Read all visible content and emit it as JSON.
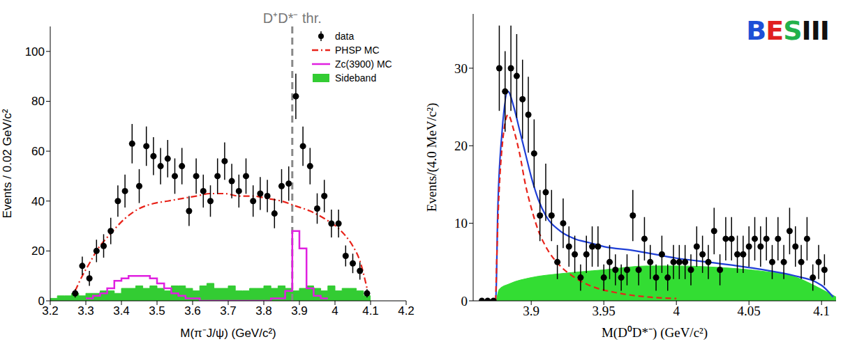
{
  "chart_data": [
    {
      "type": "histogram",
      "xlabel": "M(π⁻J/ψ) (GeV/c²)",
      "ylabel": "Events / 0.02 GeV/c²",
      "xlim": [
        3.2,
        4.2
      ],
      "xticks": [
        3.2,
        3.3,
        3.4,
        3.5,
        3.6,
        3.7,
        3.8,
        3.9,
        4,
        4.1,
        4.2
      ],
      "ylim": [
        0,
        110
      ],
      "yticks": [
        0,
        20,
        40,
        60,
        80,
        100
      ],
      "legend": "upper right",
      "annotation": {
        "text": "D⁺D*⁻ thr.",
        "x": 3.88
      },
      "series": [
        {
          "name": "Sideband",
          "type": "bar",
          "color": "#33cc33",
          "bins": [
            3.2,
            3.22,
            3.24,
            3.26,
            3.28,
            3.3,
            3.32,
            3.34,
            3.36,
            3.38,
            3.4,
            3.42,
            3.44,
            3.46,
            3.48,
            3.5,
            3.52,
            3.54,
            3.56,
            3.58,
            3.6,
            3.62,
            3.64,
            3.66,
            3.68,
            3.7,
            3.72,
            3.74,
            3.76,
            3.78,
            3.8,
            3.82,
            3.84,
            3.86,
            3.88,
            3.9,
            3.92,
            3.94,
            3.96,
            3.98,
            4,
            4.02,
            4.04,
            4.06,
            4.08,
            4.1
          ],
          "counts": [
            1,
            2,
            2,
            3,
            2,
            3,
            3,
            4,
            4,
            3,
            5,
            5,
            6,
            5,
            6,
            5,
            4,
            6,
            6,
            5,
            4,
            6,
            7,
            5,
            5,
            6,
            4,
            4,
            5,
            5,
            6,
            5,
            6,
            5,
            4,
            5,
            6,
            5,
            4,
            6,
            4,
            5,
            5,
            4,
            2
          ]
        },
        {
          "name": "PHSP MC",
          "type": "line",
          "color": "#e8231a",
          "line_style": "dashdot",
          "x": [
            3.27,
            3.29,
            3.31,
            3.33,
            3.37,
            3.41,
            3.45,
            3.49,
            3.53,
            3.57,
            3.61,
            3.65,
            3.69,
            3.73,
            3.77,
            3.81,
            3.85,
            3.89,
            3.93,
            3.97,
            4.01,
            4.03,
            4.05,
            4.07,
            4.09
          ],
          "values": [
            4,
            10,
            15,
            20,
            27,
            33,
            37,
            39,
            40,
            41,
            42,
            43,
            43,
            42,
            42,
            41,
            40,
            38,
            36,
            33,
            29,
            26,
            22,
            16,
            5
          ]
        },
        {
          "name": "Zc(3900) MC",
          "type": "step",
          "color": "#e020e0",
          "line_style": "solid",
          "bins": [
            3.3,
            3.32,
            3.34,
            3.36,
            3.38,
            3.4,
            3.42,
            3.44,
            3.46,
            3.48,
            3.5,
            3.52,
            3.54,
            3.56,
            3.58,
            3.6,
            3.62,
            3.64,
            3.66,
            3.68,
            3.7,
            3.72,
            3.74,
            3.76,
            3.78,
            3.8,
            3.82,
            3.84,
            3.86,
            3.88,
            3.9,
            3.92,
            3.94,
            3.96,
            3.98
          ],
          "counts": [
            1,
            2,
            3,
            5,
            8,
            9,
            10,
            10,
            10,
            9,
            7,
            5,
            3,
            2,
            1,
            1,
            0,
            0,
            0,
            0,
            0,
            0,
            0,
            0,
            0,
            0,
            1,
            1,
            4,
            28,
            21,
            5,
            2,
            1
          ]
        },
        {
          "name": "data",
          "type": "scatter",
          "color": "#000000",
          "marker": "circle",
          "x": [
            3.27,
            3.29,
            3.31,
            3.33,
            3.35,
            3.37,
            3.39,
            3.41,
            3.43,
            3.45,
            3.47,
            3.49,
            3.51,
            3.53,
            3.55,
            3.57,
            3.59,
            3.61,
            3.63,
            3.65,
            3.67,
            3.69,
            3.71,
            3.73,
            3.75,
            3.77,
            3.79,
            3.81,
            3.83,
            3.85,
            3.87,
            3.89,
            3.91,
            3.93,
            3.95,
            3.97,
            3.99,
            4.01,
            4.03,
            4.05,
            4.07,
            4.09
          ],
          "values": [
            3,
            14,
            9,
            20,
            22,
            28,
            40,
            44,
            63,
            46,
            62,
            58,
            54,
            57,
            50,
            54,
            36,
            50,
            44,
            40,
            50,
            56,
            48,
            44,
            50,
            40,
            43,
            42,
            35,
            46,
            47,
            82,
            62,
            54,
            37,
            42,
            31,
            31,
            18,
            15,
            12,
            3
          ],
          "errors": [
            1.7,
            3.7,
            3,
            4.5,
            4.7,
            5.3,
            6.3,
            6.6,
            7.9,
            6.8,
            7.9,
            7.6,
            7.3,
            7.5,
            7.1,
            7.3,
            6,
            7.1,
            6.6,
            6.3,
            7.1,
            7.5,
            6.9,
            6.6,
            7.1,
            6.3,
            6.6,
            6.5,
            5.9,
            6.8,
            6.9,
            9.1,
            7.9,
            7.3,
            6.1,
            6.5,
            5.6,
            5.6,
            4.2,
            3.9,
            3.5,
            1.7
          ]
        }
      ]
    },
    {
      "type": "line",
      "xlabel": "M(D⁰D*⁻) (GeV/c²)",
      "ylabel": "Events/(4.0 MeV/c²)",
      "logo": "BESIII",
      "xlim": [
        3.86,
        4.11
      ],
      "xticks": [
        3.9,
        3.95,
        4,
        4.05,
        4.1
      ],
      "ylim": [
        0,
        37
      ],
      "yticks": [
        0,
        10,
        20,
        30
      ],
      "series": [
        {
          "type": "area",
          "color": "#33dd33",
          "x": [
            3.876,
            3.878,
            3.885,
            3.9,
            3.92,
            3.95,
            3.98,
            4,
            4.03,
            4.06,
            4.08,
            4.1,
            4.11
          ],
          "values": [
            0,
            1.5,
            2.2,
            3,
            3.5,
            4,
            4.5,
            4.5,
            4.3,
            3.8,
            3.2,
            1.5,
            0.5
          ]
        },
        {
          "type": "line",
          "color": "#1f3fd6",
          "line_style": "solid",
          "x": [
            3.866,
            3.8755,
            3.877,
            3.88,
            3.884,
            3.888,
            3.892,
            3.896,
            3.9,
            3.905,
            3.91,
            3.92,
            3.93,
            3.94,
            3.95,
            3.97,
            4,
            4.03,
            4.06,
            4.08,
            4.1,
            4.108
          ],
          "values": [
            0,
            0,
            12,
            22,
            27,
            25,
            22,
            19,
            16,
            13,
            11,
            9,
            8,
            7.5,
            7,
            6.5,
            5.5,
            4.8,
            4,
            3.3,
            2,
            0.5
          ]
        },
        {
          "type": "line",
          "color": "#e8231a",
          "line_style": "dashed",
          "x": [
            3.8755,
            3.877,
            3.88,
            3.884,
            3.888,
            3.892,
            3.896,
            3.9,
            3.905,
            3.91,
            3.92,
            3.93,
            3.94,
            3.96,
            3.98,
            4
          ],
          "values": [
            0,
            10,
            20,
            24,
            22,
            19,
            15,
            12,
            9,
            7,
            4.5,
            3,
            2,
            1,
            0.5,
            0.3
          ]
        },
        {
          "type": "scatter",
          "color": "#000000",
          "marker": "circle",
          "x": [
            3.866,
            3.87,
            3.874,
            3.878,
            3.882,
            3.886,
            3.89,
            3.894,
            3.898,
            3.902,
            3.906,
            3.91,
            3.914,
            3.918,
            3.922,
            3.926,
            3.93,
            3.934,
            3.938,
            3.942,
            3.946,
            3.95,
            3.954,
            3.958,
            3.962,
            3.966,
            3.97,
            3.974,
            3.978,
            3.982,
            3.986,
            3.99,
            3.994,
            3.998,
            4.002,
            4.006,
            4.01,
            4.014,
            4.018,
            4.022,
            4.026,
            4.03,
            4.034,
            4.038,
            4.042,
            4.046,
            4.05,
            4.054,
            4.058,
            4.062,
            4.066,
            4.07,
            4.074,
            4.078,
            4.082,
            4.086,
            4.09,
            4.094,
            4.098,
            4.102
          ],
          "values": [
            0,
            0,
            0,
            30,
            27,
            30,
            29,
            26,
            24,
            19,
            11,
            14,
            11,
            5,
            10,
            7,
            6,
            3,
            6,
            7,
            7,
            3,
            5,
            4,
            3,
            4,
            11,
            4,
            8,
            5,
            3,
            6,
            3,
            5,
            5,
            5,
            4,
            7,
            6,
            5,
            9,
            4,
            8,
            8,
            6,
            6,
            7,
            8,
            7,
            8,
            5,
            8,
            5,
            9,
            7,
            5,
            8,
            3,
            5,
            4
          ],
          "errors": [
            0,
            0,
            0,
            5.5,
            5.2,
            5.5,
            5.4,
            5.1,
            4.9,
            4.4,
            3.3,
            3.7,
            3.3,
            2.2,
            3.2,
            2.6,
            2.4,
            1.7,
            2.4,
            2.6,
            2.6,
            1.7,
            2.2,
            2,
            1.7,
            2,
            3.3,
            2,
            2.8,
            2.2,
            1.7,
            2.4,
            1.7,
            2.2,
            2.2,
            2.2,
            2,
            2.6,
            2.4,
            2.2,
            3,
            2,
            2.8,
            2.8,
            2.4,
            2.4,
            2.6,
            2.8,
            2.6,
            2.8,
            2.2,
            2.8,
            2.2,
            3,
            2.6,
            2.2,
            2.8,
            1.7,
            2.2,
            2
          ]
        }
      ]
    }
  ]
}
